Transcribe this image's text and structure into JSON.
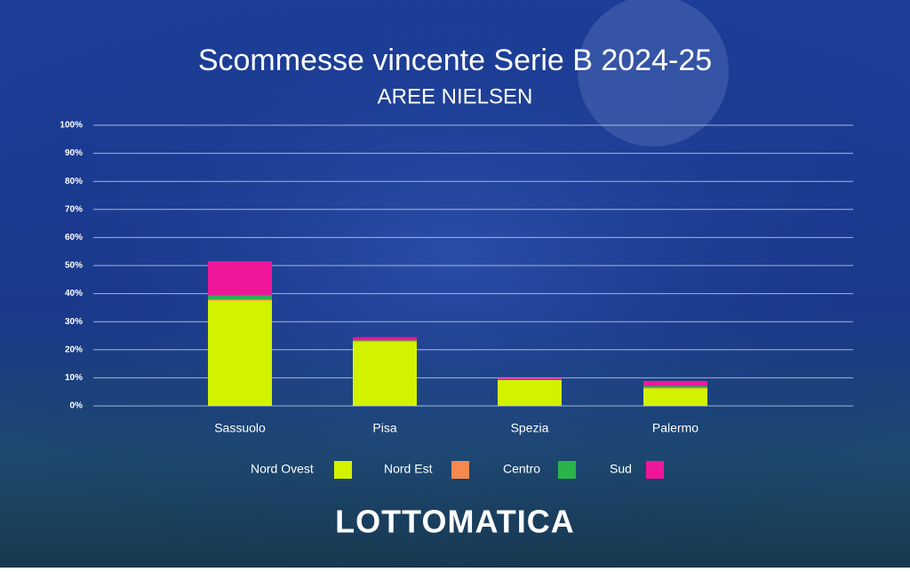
{
  "chart_data": {
    "type": "stacked-bar",
    "title": "Scommesse vincente Serie B 2024-25",
    "subtitle": "AREE NIELSEN",
    "categories": [
      "Sassuolo",
      "Pisa",
      "Spezia",
      "Palermo"
    ],
    "series": [
      {
        "name": "Nord Ovest",
        "color": "#d2f200",
        "values": [
          37.5,
          23,
          9.2,
          6.3
        ]
      },
      {
        "name": "Nord Est",
        "color": "#f5894f",
        "values": [
          0.5,
          0.3,
          0.1,
          0.2
        ]
      },
      {
        "name": "Centro",
        "color": "#2bb44c",
        "values": [
          1.5,
          0.2,
          0.1,
          0.6
        ]
      },
      {
        "name": "Sud",
        "color": "#f0169a",
        "values": [
          12,
          1,
          0.5,
          1.8
        ]
      }
    ],
    "ylim": [
      0,
      100
    ],
    "yticks": [
      {
        "value": 0,
        "label": "0%"
      },
      {
        "value": 10,
        "label": "10%"
      },
      {
        "value": 20,
        "label": "20%"
      },
      {
        "value": 30,
        "label": "30%"
      },
      {
        "value": 40,
        "label": "40%"
      },
      {
        "value": 50,
        "label": "50%"
      },
      {
        "value": 60,
        "label": "60%"
      },
      {
        "value": 70,
        "label": "70%"
      },
      {
        "value": 80,
        "label": "80%"
      },
      {
        "value": 90,
        "label": "90%"
      },
      {
        "value": 100,
        "label": "100%"
      }
    ],
    "grid": true,
    "legend": "bottom"
  },
  "brand": "LOTTOMATICA"
}
